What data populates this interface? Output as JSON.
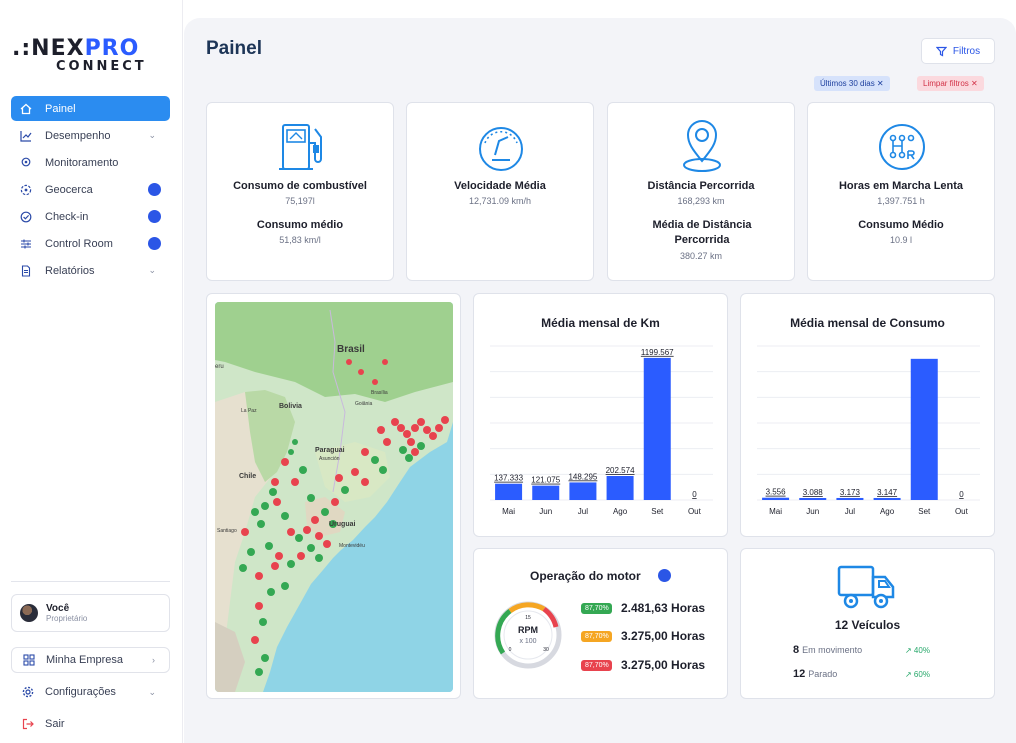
{
  "brand": {
    "line1": ".:NEX",
    "line1_accent": "PRO",
    "line2": "CONNECT"
  },
  "nav": {
    "items": [
      {
        "label": "Painel",
        "icon": "home-icon",
        "active": true
      },
      {
        "label": "Desempenho",
        "icon": "chart-line-icon",
        "chevron": true
      },
      {
        "label": "Monitoramento",
        "icon": "location-pin-icon"
      },
      {
        "label": "Geocerca",
        "icon": "geofence-icon",
        "premium": true
      },
      {
        "label": "Check-in",
        "icon": "check-circle-icon",
        "premium": true
      },
      {
        "label": "Control Room",
        "icon": "sliders-icon",
        "premium": true
      },
      {
        "label": "Relatórios",
        "icon": "document-icon",
        "chevron": true
      }
    ]
  },
  "user": {
    "name": "Você",
    "role": "Proprietário"
  },
  "sidebar_bottom": {
    "company": "Minha Empresa",
    "settings": "Configurações",
    "logout": "Sair"
  },
  "header": {
    "title": "Painel",
    "filters_label": "Filtros",
    "chip_period": "Últimos 30 dias ✕",
    "chip_clear": "Limpar filtros ✕"
  },
  "stats": [
    {
      "title": "Consumo de combustível",
      "value": "75,197l",
      "title2": "Consumo médio",
      "value2": "51,83 km/l"
    },
    {
      "title": "Velocidade Média",
      "value": "12,731.09 km/h"
    },
    {
      "title": "Distância Percorrida",
      "value": "168,293 km",
      "title2": "Média de Distância Percorrida",
      "value2": "380.27 km"
    },
    {
      "title": "Horas em Marcha Lenta",
      "value": "1,397.751 h",
      "title2": "Consumo Médio",
      "value2": "10.9 l"
    }
  ],
  "map": {
    "labels": {
      "brasil": "Brasil",
      "bolivia": "Bolivia",
      "paraguai": "Paraguai",
      "chile": "Chile",
      "uruguai": "Uruguai",
      "santiago": "Santiago",
      "lapaz": "La Paz",
      "brasilia": "Brasília",
      "goiania": "Goiânia",
      "asuncion": "Asunción",
      "montevideu": "Montevidéu",
      "peru": "eru"
    }
  },
  "chart_data": [
    {
      "type": "bar",
      "title": "Média mensal de Km",
      "categories": [
        "Mai",
        "Jun",
        "Jul",
        "Ago",
        "Set",
        "Out"
      ],
      "values": [
        137.333,
        121.075,
        148.295,
        202.574,
        1199.567,
        0
      ],
      "value_labels": [
        "137.333",
        "121.075",
        "148.295",
        "202.574",
        "1199.567",
        "0"
      ],
      "ylim": [
        0,
        1300
      ],
      "grid": true
    },
    {
      "type": "bar",
      "title": "Média mensal de Consumo",
      "categories": [
        "Mai",
        "Jun",
        "Jul",
        "Ago",
        "Set",
        "Out"
      ],
      "values": [
        3.556,
        3.088,
        3.173,
        3.147,
        220,
        0
      ],
      "value_labels": [
        "3.556",
        "3.088",
        "3.173",
        "3.147",
        "",
        "0"
      ],
      "ylim": [
        0,
        240
      ],
      "grid": true
    }
  ],
  "motor": {
    "title": "Operação do motor",
    "gauge": {
      "label": "RPM",
      "sub": "x 100",
      "ticks": [
        "0",
        "15",
        "30"
      ]
    },
    "rows": [
      {
        "pct": "87,70%",
        "hours": "2.481,63 Horas",
        "color": "#34a853"
      },
      {
        "pct": "87,70%",
        "hours": "3.275,00 Horas",
        "color": "#f5a623"
      },
      {
        "pct": "87,70%",
        "hours": "3.275,00 Horas",
        "color": "#e8434e"
      }
    ]
  },
  "vehicles": {
    "title": "12 Veículos",
    "moving_count": "8",
    "moving_label": "Em movimento",
    "moving_pct": "↗ 40%",
    "stopped_count": "12",
    "stopped_label": "Parado",
    "stopped_pct": "↗ 60%"
  },
  "colors": {
    "accent": "#2b56e6",
    "active_nav": "#2b8cf0",
    "bar": "#2b5cff"
  }
}
